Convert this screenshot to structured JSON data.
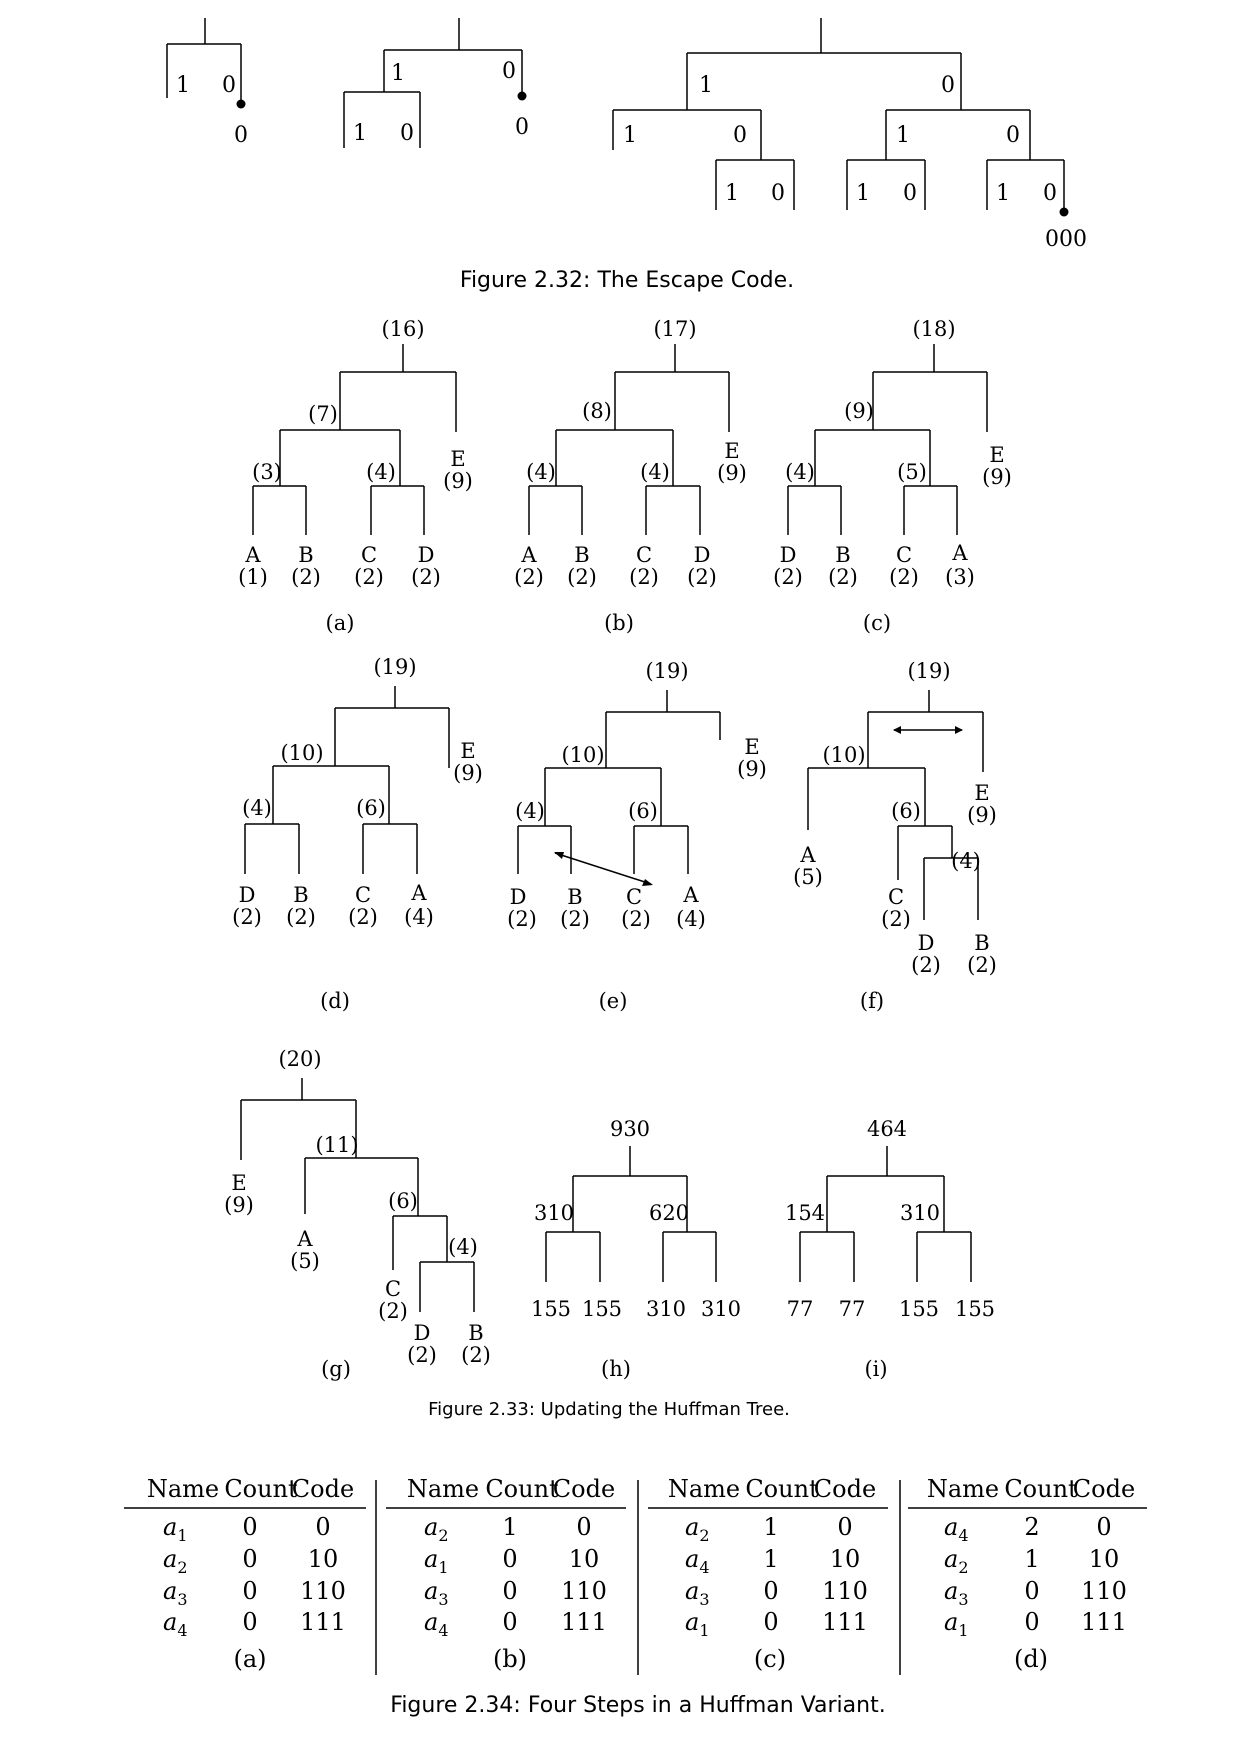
{
  "fig232": {
    "caption": "Figure 2.32: The Escape Code.",
    "t1": {
      "left": "1",
      "right": "0",
      "esc": "0"
    },
    "t2": {
      "top_left": "1",
      "top_right": "0",
      "sub_left": "1",
      "sub_right": "0",
      "esc": "0"
    },
    "t3": {
      "root_left": "1",
      "root_right": "0",
      "l_left": "1",
      "l_right": "0",
      "ll_left": "1",
      "ll_right": "0",
      "r_left": "1",
      "r_right": "0",
      "rl_left": "1",
      "rl_right": "0",
      "rr_left": "1",
      "rr_right": "0",
      "esc": "000"
    }
  },
  "fig233": {
    "caption": "Figure 2.33: Updating the Huffman Tree.",
    "a": {
      "root": "(16)",
      "n1": "(7)",
      "n2": "(3)",
      "n3": "(4)",
      "E": "E",
      "Ew": "(9)",
      "A": "A",
      "Aw": "(1)",
      "B": "B",
      "Bw": "(2)",
      "C": "C",
      "Cw": "(2)",
      "D": "D",
      "Dw": "(2)",
      "label": "(a)"
    },
    "b": {
      "root": "(17)",
      "n1": "(8)",
      "n2": "(4)",
      "n3": "(4)",
      "E": "E",
      "Ew": "(9)",
      "A": "A",
      "Aw": "(2)",
      "B": "B",
      "Bw": "(2)",
      "C": "C",
      "Cw": "(2)",
      "D": "D",
      "Dw": "(2)",
      "label": "(b)"
    },
    "c": {
      "root": "(18)",
      "n1": "(9)",
      "n2": "(4)",
      "n3": "(5)",
      "E": "E",
      "Ew": "(9)",
      "D": "D",
      "Dw": "(2)",
      "B": "B",
      "Bw": "(2)",
      "C": "C",
      "Cw": "(2)",
      "A": "A",
      "Aw": "(3)",
      "label": "(c)"
    },
    "d": {
      "root": "(19)",
      "n1": "(10)",
      "n2": "(4)",
      "n3": "(6)",
      "E": "E",
      "Ew": "(9)",
      "D": "D",
      "Dw": "(2)",
      "B": "B",
      "Bw": "(2)",
      "C": "C",
      "Cw": "(2)",
      "A": "A",
      "Aw": "(4)",
      "label": "(d)"
    },
    "e": {
      "root": "(19)",
      "n1": "(10)",
      "n2": "(4)",
      "n3": "(6)",
      "E": "E",
      "Ew": "(9)",
      "D": "D",
      "Dw": "(2)",
      "B": "B",
      "Bw": "(2)",
      "C": "C",
      "Cw": "(2)",
      "A": "A",
      "Aw": "(4)",
      "label": "(e)"
    },
    "f": {
      "root": "(19)",
      "n1": "(10)",
      "n2": "(6)",
      "n3": "(4)",
      "E": "E",
      "Ew": "(9)",
      "A": "A",
      "Aw": "(5)",
      "C": "C",
      "Cw": "(2)",
      "D": "D",
      "Dw": "(2)",
      "B": "B",
      "Bw": "(2)",
      "label": "(f)"
    },
    "g": {
      "root": "(20)",
      "n1": "(11)",
      "n2": "(6)",
      "n3": "(4)",
      "E": "E",
      "Ew": "(9)",
      "A": "A",
      "Aw": "(5)",
      "C": "C",
      "Cw": "(2)",
      "D": "D",
      "Dw": "(2)",
      "B": "B",
      "Bw": "(2)",
      "label": "(g)"
    },
    "h": {
      "root": "930",
      "l": "310",
      "r": "620",
      "ll": "155",
      "lr": "155",
      "rl": "310",
      "rr": "310",
      "label": "(h)"
    },
    "i": {
      "root": "464",
      "l": "154",
      "r": "310",
      "ll": "77",
      "lr": "77",
      "rl": "155",
      "rr": "155",
      "label": "(i)"
    }
  },
  "fig234": {
    "caption": "Figure 2.34: Four Steps in a Huffman Variant.",
    "header": {
      "name": "Name",
      "count": "Count",
      "code": "Code"
    },
    "tables": [
      {
        "label": "(a)",
        "rows": [
          [
            "a",
            "1",
            "0",
            "0"
          ],
          [
            "a",
            "2",
            "0",
            "10"
          ],
          [
            "a",
            "3",
            "0",
            "110"
          ],
          [
            "a",
            "4",
            "0",
            "111"
          ]
        ]
      },
      {
        "label": "(b)",
        "rows": [
          [
            "a",
            "2",
            "1",
            "0"
          ],
          [
            "a",
            "1",
            "0",
            "10"
          ],
          [
            "a",
            "3",
            "0",
            "110"
          ],
          [
            "a",
            "4",
            "0",
            "111"
          ]
        ]
      },
      {
        "label": "(c)",
        "rows": [
          [
            "a",
            "2",
            "1",
            "0"
          ],
          [
            "a",
            "4",
            "1",
            "10"
          ],
          [
            "a",
            "3",
            "0",
            "110"
          ],
          [
            "a",
            "1",
            "0",
            "111"
          ]
        ]
      },
      {
        "label": "(d)",
        "rows": [
          [
            "a",
            "4",
            "2",
            "0"
          ],
          [
            "a",
            "2",
            "1",
            "10"
          ],
          [
            "a",
            "3",
            "0",
            "110"
          ],
          [
            "a",
            "1",
            "0",
            "111"
          ]
        ]
      }
    ]
  }
}
